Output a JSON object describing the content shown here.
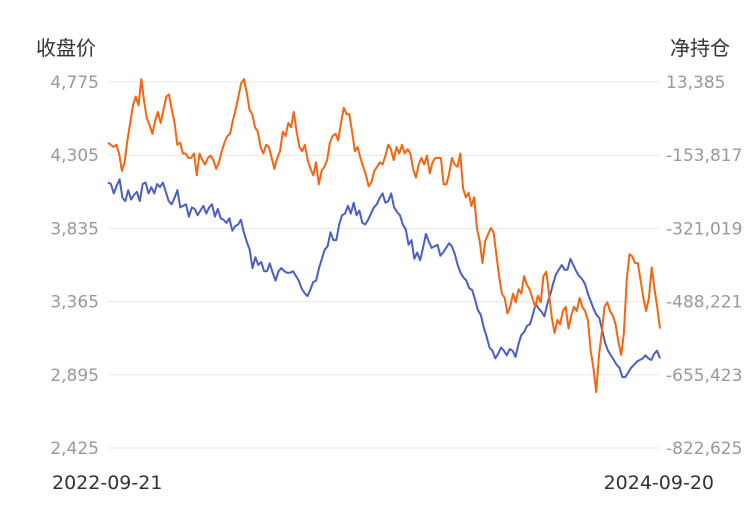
{
  "chart_data": {
    "type": "line",
    "left_axis_title": "收盘价",
    "right_axis_title": "净持仓",
    "left_ticks": [
      "4,775",
      "4,305",
      "3,835",
      "3,365",
      "2,895",
      "2,425"
    ],
    "right_ticks": [
      "13,385",
      "-153,817",
      "-321,019",
      "-488,221",
      "-655,423",
      "-822,625"
    ],
    "ylim_left": [
      2425,
      4775
    ],
    "ylim_right": [
      -822625,
      13385
    ],
    "x_start_label": "2022-09-21",
    "x_end_label": "2024-09-20",
    "grid": true,
    "colors": {
      "close": "#4a5fc1",
      "net_position": "#f4650f",
      "grid": "#e6e6e6",
      "tick": "#999999"
    },
    "series": [
      {
        "name": "",
        "axis": "left",
        "color": "#4a5fc1",
        "values": [
          4130,
          4120,
          4060,
          4110,
          4150,
          4030,
          4010,
          4080,
          4020,
          4050,
          4070,
          4010,
          4120,
          4130,
          4060,
          4100,
          4060,
          4120,
          4100,
          4130,
          4070,
          4010,
          3990,
          4030,
          4080,
          3970,
          3980,
          3990,
          3910,
          3970,
          3960,
          3920,
          3950,
          3980,
          3930,
          3970,
          3990,
          3910,
          3960,
          3900,
          3890,
          3870,
          3900,
          3820,
          3850,
          3860,
          3890,
          3810,
          3750,
          3700,
          3580,
          3650,
          3600,
          3620,
          3560,
          3560,
          3610,
          3550,
          3500,
          3560,
          3580,
          3560,
          3550,
          3550,
          3560,
          3530,
          3500,
          3450,
          3420,
          3400,
          3440,
          3490,
          3500,
          3580,
          3640,
          3700,
          3720,
          3810,
          3760,
          3760,
          3860,
          3920,
          3930,
          3980,
          3930,
          4000,
          3920,
          3950,
          3870,
          3860,
          3890,
          3930,
          3970,
          3990,
          4030,
          4060,
          4000,
          4010,
          4060,
          3970,
          3940,
          3920,
          3860,
          3830,
          3730,
          3760,
          3640,
          3680,
          3630,
          3710,
          3800,
          3750,
          3710,
          3720,
          3730,
          3660,
          3680,
          3710,
          3740,
          3720,
          3670,
          3600,
          3550,
          3520,
          3500,
          3450,
          3440,
          3380,
          3310,
          3280,
          3200,
          3140,
          3070,
          3050,
          3000,
          3030,
          3070,
          3050,
          3020,
          3060,
          3050,
          3010,
          3090,
          3150,
          3170,
          3210,
          3220,
          3280,
          3350,
          3320,
          3300,
          3270,
          3350,
          3410,
          3480,
          3540,
          3570,
          3600,
          3570,
          3570,
          3640,
          3600,
          3560,
          3530,
          3510,
          3480,
          3420,
          3370,
          3320,
          3280,
          3260,
          3180,
          3100,
          3050,
          3020,
          2990,
          2960,
          2940,
          2880,
          2880,
          2910,
          2940,
          2960,
          2980,
          2990,
          3000,
          3020,
          3000,
          2990,
          3030,
          3050,
          3000
        ]
      },
      {
        "name": "",
        "axis": "right",
        "color": "#f4650f",
        "values": [
          -125000,
          -130000,
          -135000,
          -130000,
          -150000,
          -190000,
          -170000,
          -120000,
          -80000,
          -40000,
          -20000,
          -40000,
          20000,
          -30000,
          -70000,
          -85000,
          -105000,
          -75000,
          -55000,
          -80000,
          -50000,
          -20000,
          -15000,
          -50000,
          -80000,
          -130000,
          -125000,
          -150000,
          -150000,
          -160000,
          -160000,
          -150000,
          -200000,
          -150000,
          -165000,
          -175000,
          -160000,
          -155000,
          -165000,
          -185000,
          -170000,
          -145000,
          -125000,
          -110000,
          -105000,
          -75000,
          -50000,
          -20000,
          10000,
          20000,
          -10000,
          -50000,
          -60000,
          -90000,
          -100000,
          -135000,
          -150000,
          -130000,
          -135000,
          -160000,
          -185000,
          -160000,
          -145000,
          -100000,
          -110000,
          -80000,
          -90000,
          -55000,
          -100000,
          -135000,
          -145000,
          -130000,
          -165000,
          -185000,
          -200000,
          -170000,
          -220000,
          -190000,
          -180000,
          -165000,
          -125000,
          -110000,
          -105000,
          -120000,
          -80000,
          -45000,
          -60000,
          -60000,
          -100000,
          -145000,
          -135000,
          -160000,
          -180000,
          -200000,
          -225000,
          -215000,
          -190000,
          -180000,
          -170000,
          -175000,
          -155000,
          -130000,
          -140000,
          -165000,
          -135000,
          -150000,
          -130000,
          -150000,
          -140000,
          -150000,
          -185000,
          -205000,
          -175000,
          -160000,
          -175000,
          -155000,
          -195000,
          -170000,
          -160000,
          -160000,
          -160000,
          -220000,
          -220000,
          -195000,
          -160000,
          -175000,
          -180000,
          -150000,
          -230000,
          -250000,
          -240000,
          -270000,
          -250000,
          -320000,
          -350000,
          -400000,
          -350000,
          -335000,
          -320000,
          -330000,
          -380000,
          -430000,
          -470000,
          -480000,
          -515000,
          -500000,
          -470000,
          -490000,
          -460000,
          -470000,
          -430000,
          -450000,
          -460000,
          -480000,
          -500000,
          -475000,
          -490000,
          -430000,
          -420000,
          -470000,
          -525000,
          -560000,
          -530000,
          -540000,
          -510000,
          -500000,
          -550000,
          -520000,
          -500000,
          -510000,
          -480000,
          -500000,
          -510000,
          -530000,
          -600000,
          -640000,
          -695000,
          -610000,
          -560000,
          -500000,
          -490000,
          -510000,
          -520000,
          -540000,
          -580000,
          -610000,
          -560000,
          -440000,
          -380000,
          -385000,
          -400000,
          -400000,
          -440000,
          -480000,
          -510000,
          -480000,
          -410000,
          -460000,
          -500000,
          -550000
        ]
      }
    ]
  }
}
